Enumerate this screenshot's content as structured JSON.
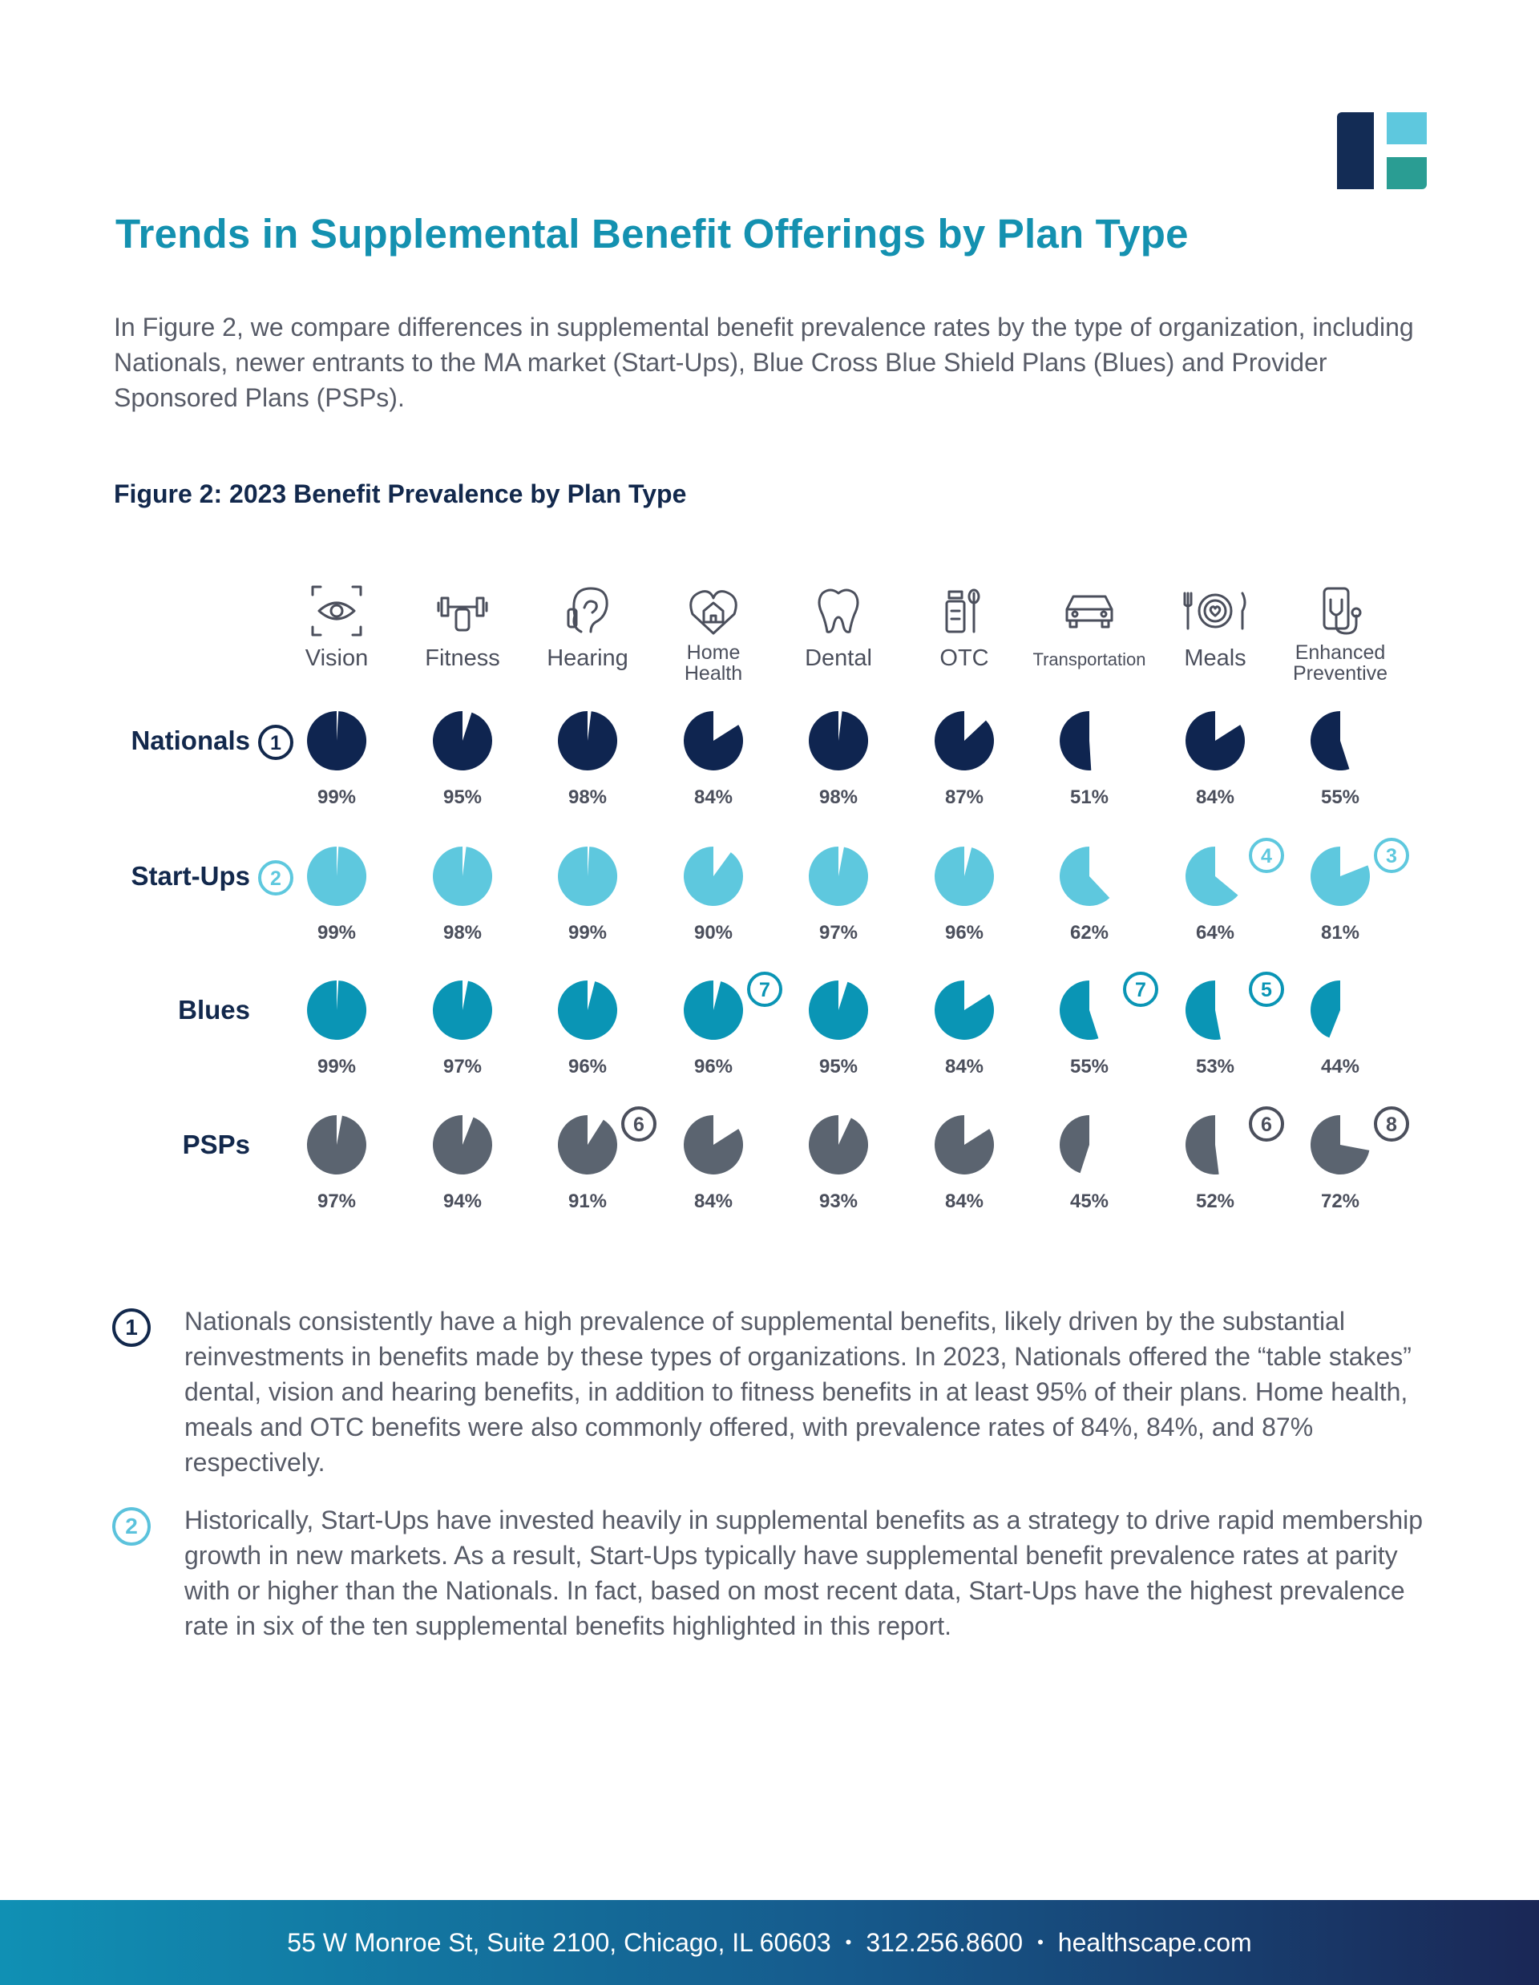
{
  "title": "Trends in Supplemental Benefit Offerings by Plan Type",
  "intro": "In Figure 2, we compare differences in supplemental benefit prevalence rates by the type of organization, including Nationals, newer entrants to the MA market (Start-Ups), Blue Cross Blue Shield Plans (Blues) and Provider Sponsored Plans (PSPs).",
  "figure_title": "Figure 2: 2023 Benefit Prevalence by Plan Type",
  "colors": {
    "brand_teal": "#1491b0",
    "navy": "#12284c",
    "nationals": "#0f2550",
    "startups": "#5ec8de",
    "blues": "#0a95b5",
    "psps": "#5b6470",
    "logo_navy": "#132c55",
    "logo_light": "#5ec8de",
    "logo_green": "#2a9d93"
  },
  "chart_data": {
    "type": "pie",
    "title": "Figure 2: 2023 Benefit Prevalence by Plan Type",
    "unit": "%",
    "categories": [
      {
        "label": "Vision",
        "icon": "eye-icon"
      },
      {
        "label": "Fitness",
        "icon": "dumbbell-icon"
      },
      {
        "label": "Hearing",
        "icon": "ear-icon"
      },
      {
        "label": "Home\nHealth",
        "icon": "home-heart-icon"
      },
      {
        "label": "Dental",
        "icon": "tooth-icon"
      },
      {
        "label": "OTC",
        "icon": "medicine-bottle-icon"
      },
      {
        "label": "Transportation",
        "icon": "car-icon"
      },
      {
        "label": "Meals",
        "icon": "plate-icon"
      },
      {
        "label": "Enhanced\nPreventive",
        "icon": "stethoscope-phone-icon"
      }
    ],
    "series": [
      {
        "name": "Nationals",
        "badge": "1",
        "color": "#0f2550",
        "values": [
          99,
          95,
          98,
          84,
          98,
          87,
          51,
          84,
          55
        ],
        "labels": [
          "99%",
          "95%",
          "98%",
          "84%",
          "98%",
          "87%",
          "51%",
          "84%",
          "55%"
        ],
        "badges": {}
      },
      {
        "name": "Start-Ups",
        "badge": "2",
        "color": "#5ec8de",
        "values": [
          99,
          98,
          99,
          90,
          97,
          96,
          62,
          64,
          81
        ],
        "labels": [
          "99%",
          "98%",
          "99%",
          "90%",
          "97%",
          "96%",
          "62%",
          "64%",
          "81%"
        ],
        "badges": {
          "7": "4",
          "8": "3"
        }
      },
      {
        "name": "Blues",
        "badge": "",
        "color": "#0a95b5",
        "values": [
          99,
          97,
          96,
          96,
          95,
          84,
          55,
          53,
          44
        ],
        "labels": [
          "99%",
          "97%",
          "96%",
          "96%",
          "95%",
          "84%",
          "55%",
          "53%",
          "44%"
        ],
        "badges": {
          "3": "7",
          "6": "7",
          "7": "5"
        }
      },
      {
        "name": "PSPs",
        "badge": "",
        "color": "#5b6470",
        "values": [
          97,
          94,
          91,
          84,
          93,
          84,
          45,
          52,
          72
        ],
        "labels": [
          "97%",
          "94%",
          "91%",
          "84%",
          "93%",
          "84%",
          "45%",
          "52%",
          "72%"
        ],
        "badges": {
          "2": "6",
          "7": "6",
          "8": "8"
        }
      }
    ]
  },
  "notes": [
    {
      "num": "1",
      "text": "Nationals consistently have a high prevalence of supplemental benefits, likely driven by the substantial reinvestments in benefits made by these types of organizations. In 2023, Nationals offered the “table stakes” dental, vision and hearing benefits, in addition to fitness benefits in at least 95% of their plans. Home health, meals and OTC benefits were also commonly offered, with prevalence rates of 84%, 84%, and 87% respectively."
    },
    {
      "num": "2",
      "text": "Historically, Start-Ups have invested heavily in supplemental benefits as a strategy to drive rapid membership growth in new markets. As a result, Start-Ups typically have supplemental benefit prevalence rates at parity with or higher than the Nationals. In fact, based on most recent data, Start-Ups have the highest prevalence rate in six of the ten supplemental benefits highlighted in this report."
    }
  ],
  "footer": {
    "address": "55 W Monroe St, Suite 2100, Chicago, IL 60603",
    "separator": "•",
    "phone": "312.256.8600",
    "website": "healthscape.com"
  }
}
